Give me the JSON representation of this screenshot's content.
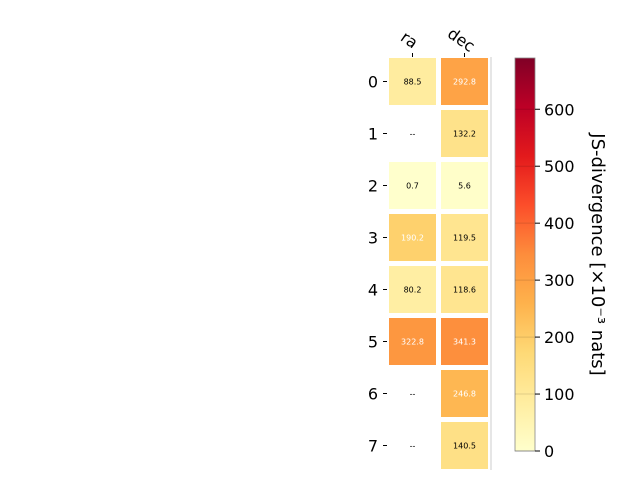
{
  "chart_data": {
    "type": "heatmap",
    "columns": [
      "ra",
      "dec"
    ],
    "rows": [
      "0",
      "1",
      "2",
      "3",
      "4",
      "5",
      "6",
      "7"
    ],
    "values": [
      [
        88.5,
        292.8
      ],
      [
        null,
        132.2
      ],
      [
        0.7,
        5.6
      ],
      [
        190.2,
        119.5
      ],
      [
        80.2,
        118.6
      ],
      [
        322.8,
        341.3
      ],
      [
        null,
        246.8
      ],
      [
        null,
        140.5
      ]
    ],
    "cell_labels": [
      [
        "88.5",
        "292.8"
      ],
      [
        "--",
        "132.2"
      ],
      [
        "0.7",
        "5.6"
      ],
      [
        "190.2",
        "119.5"
      ],
      [
        "80.2",
        "118.6"
      ],
      [
        "322.8",
        "341.3"
      ],
      [
        "--",
        "246.8"
      ],
      [
        "--",
        "140.5"
      ]
    ],
    "missing_label": "--",
    "colormap": "YlOrRd",
    "colorbar": {
      "label": "JS-divergence [×10⁻³ nats]",
      "vmin": 0,
      "vmax": 690,
      "ticks": [
        0,
        100,
        200,
        300,
        400,
        500,
        600
      ],
      "tick_labels": [
        "0",
        "100",
        "200",
        "300",
        "400",
        "500",
        "600"
      ]
    },
    "grid": false
  }
}
